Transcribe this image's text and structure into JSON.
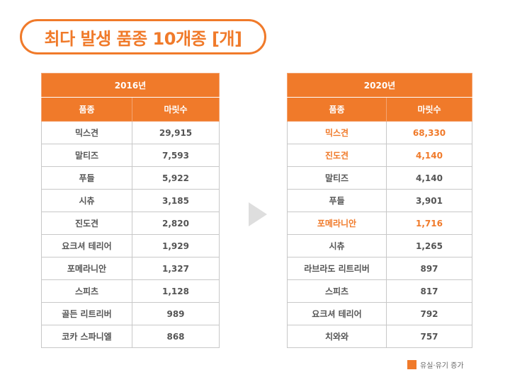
{
  "title": "최다 발생 품종 10개종 [개]",
  "colors": {
    "accent": "#F07A2A",
    "text": "#555555",
    "arrow": "#DEDEDE"
  },
  "legend": {
    "label": "유실·유기 증가"
  },
  "tables": [
    {
      "year": "2016년",
      "header": {
        "breed": "품종",
        "count": "마릿수"
      },
      "rows": [
        {
          "breed": "믹스견",
          "count": "29,915",
          "highlight": false
        },
        {
          "breed": "말티즈",
          "count": "7,593",
          "highlight": false
        },
        {
          "breed": "푸들",
          "count": "5,922",
          "highlight": false
        },
        {
          "breed": "시츄",
          "count": "3,185",
          "highlight": false
        },
        {
          "breed": "진도견",
          "count": "2,820",
          "highlight": false
        },
        {
          "breed": "요크셔 테리어",
          "count": "1,929",
          "highlight": false
        },
        {
          "breed": "포메라니안",
          "count": "1,327",
          "highlight": false
        },
        {
          "breed": "스피츠",
          "count": "1,128",
          "highlight": false
        },
        {
          "breed": "골든 리트리버",
          "count": "989",
          "highlight": false
        },
        {
          "breed": "코카 스파니엘",
          "count": "868",
          "highlight": false
        }
      ]
    },
    {
      "year": "2020년",
      "header": {
        "breed": "품종",
        "count": "마릿수"
      },
      "rows": [
        {
          "breed": "믹스견",
          "count": "68,330",
          "highlight": true
        },
        {
          "breed": "진도견",
          "count": "4,140",
          "highlight": true
        },
        {
          "breed": "말티즈",
          "count": "4,140",
          "highlight": false
        },
        {
          "breed": "푸들",
          "count": "3,901",
          "highlight": false
        },
        {
          "breed": "포메라니안",
          "count": "1,716",
          "highlight": true
        },
        {
          "breed": "시츄",
          "count": "1,265",
          "highlight": false
        },
        {
          "breed": "라브라도 리트리버",
          "count": "897",
          "highlight": false
        },
        {
          "breed": "스피츠",
          "count": "817",
          "highlight": false
        },
        {
          "breed": "요크셔 테리어",
          "count": "792",
          "highlight": false
        },
        {
          "breed": "치와와",
          "count": "757",
          "highlight": false
        }
      ]
    }
  ]
}
